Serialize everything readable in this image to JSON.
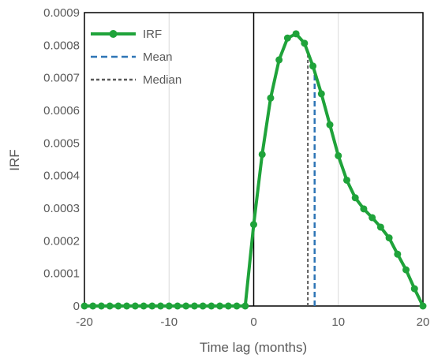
{
  "chart_data": {
    "type": "line",
    "title": "",
    "xlabel": "Time lag (months)",
    "ylabel": "IRF",
    "xlim": [
      -20,
      20
    ],
    "ylim": [
      0,
      0.0009
    ],
    "x_ticks": [
      -20,
      -10,
      0,
      10,
      20
    ],
    "y_ticks": [
      0,
      0.0001,
      0.0002,
      0.0003,
      0.0004,
      0.0005,
      0.0006,
      0.0007,
      0.0008,
      0.0009
    ],
    "x_tick_labels": [
      "-20",
      "-10",
      "0",
      "10",
      "20"
    ],
    "y_tick_labels": [
      "0",
      "0.0001",
      "0.0002",
      "0.0003",
      "0.0004",
      "0.0005",
      "0.0006",
      "0.0007",
      "0.0008",
      "0.0009"
    ],
    "grid": "vertical",
    "legend_position": "top-left",
    "series": [
      {
        "name": "IRF",
        "style": "solid-line-with-markers",
        "color": "#1fa33a",
        "x": [
          -20,
          -19,
          -18,
          -17,
          -16,
          -15,
          -14,
          -13,
          -12,
          -11,
          -10,
          -9,
          -8,
          -7,
          -6,
          -5,
          -4,
          -3,
          -2,
          -1,
          0,
          1,
          2,
          3,
          4,
          5,
          6,
          7,
          8,
          9,
          10,
          11,
          12,
          13,
          14,
          15,
          16,
          17,
          18,
          19,
          20
        ],
        "y": [
          0,
          0,
          0,
          0,
          0,
          0,
          0,
          0,
          0,
          0,
          0,
          0,
          0,
          0,
          0,
          0,
          0,
          0,
          0,
          0,
          0.00025,
          0.000465,
          0.000638,
          0.000755,
          0.000822,
          0.000835,
          0.000806,
          0.000736,
          0.000651,
          0.000556,
          0.000461,
          0.000386,
          0.000332,
          0.000298,
          0.000271,
          0.000242,
          0.000209,
          0.000159,
          0.000111,
          5.3e-05,
          0
        ]
      },
      {
        "name": "Mean",
        "style": "dashed-vertical",
        "color": "#2e75b6",
        "x": 7.2,
        "y_range": [
          0,
          0.00072
        ]
      },
      {
        "name": "Median",
        "style": "dashed-vertical",
        "color": "#595959",
        "x": 6.4,
        "y_range": [
          0,
          0.00077
        ]
      }
    ]
  }
}
